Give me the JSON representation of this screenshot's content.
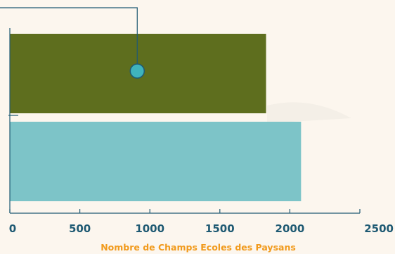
{
  "chart_data": {
    "type": "bar",
    "orientation": "horizontal",
    "categories": [
      "",
      ""
    ],
    "values": [
      1830,
      2080
    ],
    "bar_colors": [
      "#5e6e1e",
      "#7dc4c8"
    ],
    "xlim": [
      0,
      2500
    ],
    "x_ticks": [
      "0",
      "500",
      "1000",
      "1500",
      "2000",
      "2500"
    ],
    "xlabel": "Nombre de Champs Ecoles des Paysans",
    "title": "",
    "grid": false,
    "annotation_marker": {
      "x": 910,
      "bar_index": 0
    }
  },
  "colors": {
    "background": "#fcf6ee",
    "axis": "#1f5a73",
    "tick_label": "#1f5a73",
    "axis_title": "#f19a1c",
    "marker_fill": "#3fb3bd",
    "marker_stroke": "#1f5a73",
    "leader_line": "#1f5a73"
  }
}
